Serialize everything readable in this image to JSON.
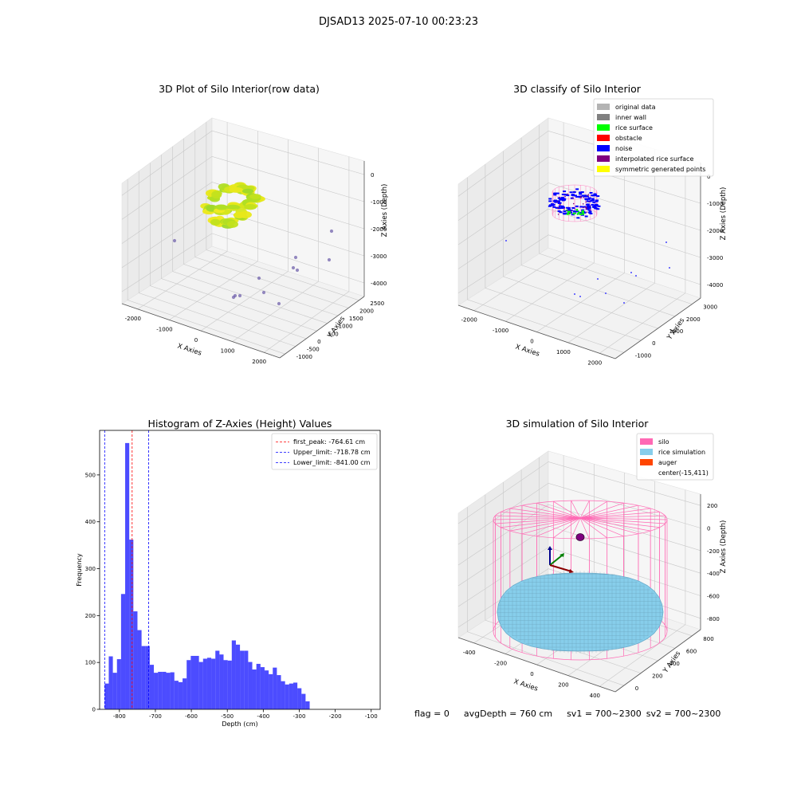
{
  "suptitle": "DJSAD13 2025-07-10 00:23:23",
  "footer": {
    "flag": "flag = 0",
    "avg_depth": "avgDepth = 760 cm",
    "sv1": "sv1 = 700~2300",
    "sv2": "sv2 = 700~2300"
  },
  "chart_data": [
    {
      "type": "scatter",
      "title": "3D Plot of Silo Interior(row data)",
      "xlabel": "X Axies",
      "ylabel": "Y Axies",
      "zlabel": "Z Axies (Depth)",
      "x_ticks": [
        "-2000",
        "-1000",
        "0",
        "1000",
        "2000"
      ],
      "y_ticks": [
        "-1000",
        "-500",
        "0",
        "500",
        "1000",
        "1500",
        "2000",
        "2500"
      ],
      "z_ticks": [
        "0",
        "-1000",
        "-2000",
        "-3000",
        "-4000"
      ]
    },
    {
      "type": "scatter",
      "title": "3D classify of Silo Interior",
      "xlabel": "X Axies",
      "ylabel": "Y Axies",
      "zlabel": "Z Axies (Depth)",
      "x_ticks": [
        "-2000",
        "-1000",
        "0",
        "1000",
        "2000"
      ],
      "y_ticks": [
        "-1000",
        "0",
        "1000",
        "2000",
        "3000"
      ],
      "z_ticks": [
        "0",
        "-1000",
        "-2000",
        "-3000",
        "-4000"
      ],
      "legend": [
        {
          "name": "original data",
          "color": "#b3b3b3"
        },
        {
          "name": "inner wall",
          "color": "#808080"
        },
        {
          "name": "rice surface",
          "color": "#00ff00"
        },
        {
          "name": "obstacle",
          "color": "#ff0000"
        },
        {
          "name": "noise",
          "color": "#0000ff"
        },
        {
          "name": "interpolated rice surface",
          "color": "#800080"
        },
        {
          "name": "symmetric generated points",
          "color": "#ffff00"
        }
      ],
      "legend_loc": "upper right"
    },
    {
      "type": "bar",
      "title": "Histogram of Z-Axies (Height) Values",
      "xlabel": "Depth (cm)",
      "ylabel": "Frequency",
      "xlim": [
        -855,
        -75
      ],
      "ylim": [
        0,
        595
      ],
      "bin_start": -841,
      "bin_width": 11.4,
      "values": [
        55,
        113,
        78,
        107,
        246,
        568,
        362,
        209,
        169,
        135,
        135,
        95,
        78,
        80,
        80,
        78,
        79,
        61,
        58,
        66,
        105,
        114,
        114,
        101,
        108,
        110,
        108,
        125,
        117,
        105,
        104,
        147,
        138,
        125,
        125,
        101,
        85,
        97,
        90,
        83,
        75,
        89,
        73,
        60,
        53,
        55,
        57,
        45,
        33,
        17
      ],
      "x_ticks": [
        -800,
        -700,
        -600,
        -500,
        -400,
        -300,
        -200,
        -100
      ],
      "y_ticks": [
        0,
        100,
        200,
        300,
        400,
        500
      ],
      "bar_color": "#0000ff",
      "lines": [
        {
          "name": "first_peak: -764.61 cm",
          "x": -764.61,
          "color": "#ff0000"
        },
        {
          "name": "Upper_limit: -718.78 cm",
          "x": -718.78,
          "color": "#0000ff"
        },
        {
          "name": "Lower_limit: -841.00 cm",
          "x": -841.0,
          "color": "#0000ff"
        }
      ],
      "legend_loc": "upper right"
    },
    {
      "type": "surface",
      "title": "3D simulation of Silo Interior",
      "xlabel": "X Axies",
      "ylabel": "Y Axies",
      "zlabel": "Z Axies (Depth)",
      "x_ticks": [
        "-400",
        "-200",
        "0",
        "200",
        "400"
      ],
      "y_ticks": [
        "0",
        "200",
        "400",
        "600",
        "800"
      ],
      "z_ticks": [
        "200",
        "0",
        "-200",
        "-400",
        "-600",
        "-800"
      ],
      "legend": [
        {
          "name": "silo",
          "color": "#ff69b4"
        },
        {
          "name": "rice simulation",
          "color": "#87ceeb"
        },
        {
          "name": "auger",
          "color": "#ff4500"
        },
        {
          "name": "center(-15,411)",
          "color": ""
        }
      ],
      "legend_loc": "upper right"
    }
  ]
}
